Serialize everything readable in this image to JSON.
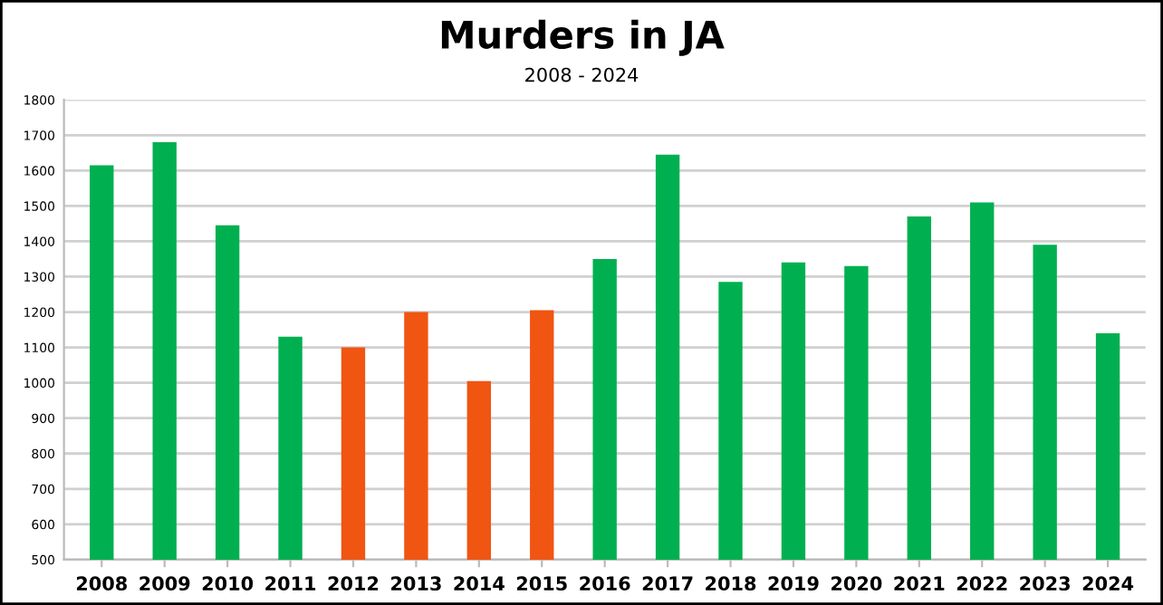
{
  "chart_data": {
    "type": "bar",
    "title": "Murders in JA",
    "subtitle": "2008 - 2024",
    "categories": [
      "2008",
      "2009",
      "2010",
      "2011",
      "2012",
      "2013",
      "2014",
      "2015",
      "2016",
      "2017",
      "2018",
      "2019",
      "2020",
      "2021",
      "2022",
      "2023",
      "2024"
    ],
    "values": [
      1615,
      1680,
      1445,
      1130,
      1100,
      1200,
      1005,
      1205,
      1350,
      1645,
      1285,
      1340,
      1330,
      1470,
      1510,
      1390,
      1140
    ],
    "colors": [
      "#00b050",
      "#00b050",
      "#00b050",
      "#00b050",
      "#f05512",
      "#f05512",
      "#f05512",
      "#f05512",
      "#00b050",
      "#00b050",
      "#00b050",
      "#00b050",
      "#00b050",
      "#00b050",
      "#00b050",
      "#00b050",
      "#00b050"
    ],
    "ylim": [
      500,
      1800
    ],
    "yticks": [
      500,
      600,
      700,
      800,
      900,
      1000,
      1100,
      1200,
      1300,
      1400,
      1500,
      1600,
      1700,
      1800
    ],
    "grid": "y"
  }
}
